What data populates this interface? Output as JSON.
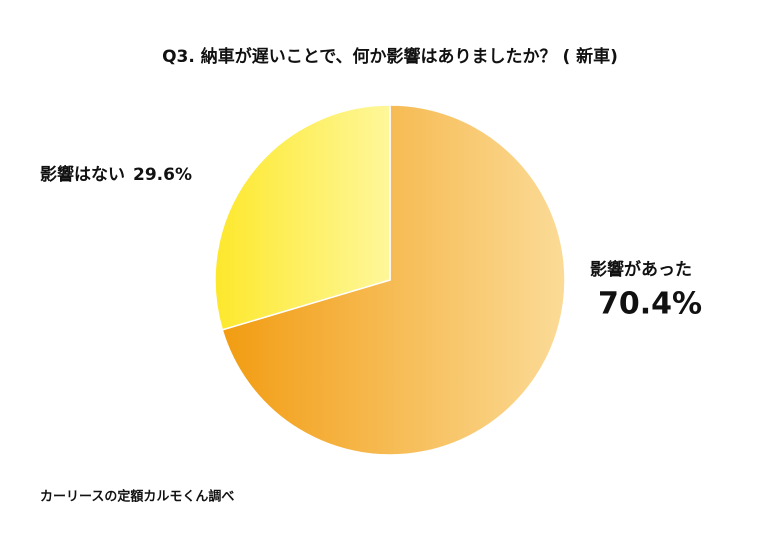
{
  "chart_data": {
    "type": "pie",
    "title": "Q3. 納車が遅いことで、何か影響はありましたか？ ( 新車)",
    "categories": [
      "影響があった",
      "影響はない"
    ],
    "values": [
      70.4,
      29.6
    ],
    "value_labels": [
      "70.4%",
      "29.6%"
    ],
    "gradients": [
      [
        "#f29c12",
        "#fbdb97"
      ],
      [
        "#fde82c",
        "#fef79a"
      ]
    ],
    "source": "カーリースの定額カルモくん調べ"
  }
}
